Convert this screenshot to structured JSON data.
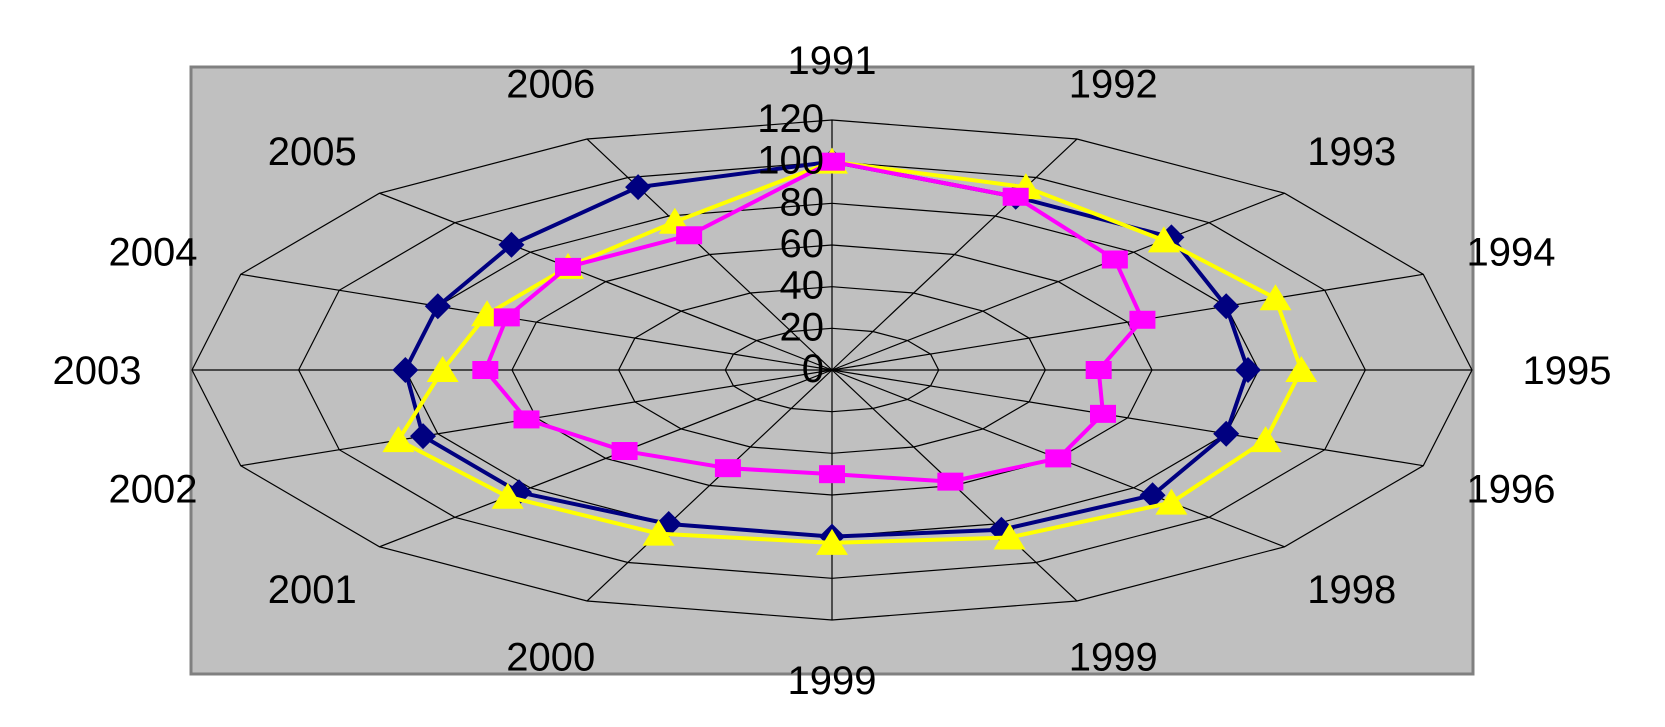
{
  "chart_data": {
    "type": "radar",
    "categories": [
      "1991",
      "1992",
      "1993",
      "1994",
      "1995",
      "1996",
      "1998",
      "1999",
      "1999",
      "2000",
      "2001",
      "2002",
      "2003",
      "2004",
      "2005",
      "2006"
    ],
    "rlim": [
      0,
      120
    ],
    "rticks": [
      "0",
      "20",
      "40",
      "60",
      "80",
      "100",
      "120"
    ],
    "grid": true,
    "series": [
      {
        "color": "#000080",
        "marker": "diamond",
        "values": [
          100,
          90,
          90,
          80,
          78,
          80,
          85,
          83,
          80,
          80,
          83,
          83,
          80,
          80,
          85,
          95
        ]
      },
      {
        "color": "#ffff00",
        "marker": "triangle",
        "values": [
          100,
          95,
          88,
          90,
          88,
          88,
          90,
          87,
          83,
          85,
          86,
          88,
          73,
          70,
          70,
          77
        ]
      },
      {
        "color": "#ff00ff",
        "marker": "square",
        "values": [
          100,
          90,
          75,
          63,
          50,
          55,
          60,
          58,
          50,
          51,
          55,
          62,
          65,
          66,
          70,
          70
        ]
      }
    ]
  }
}
